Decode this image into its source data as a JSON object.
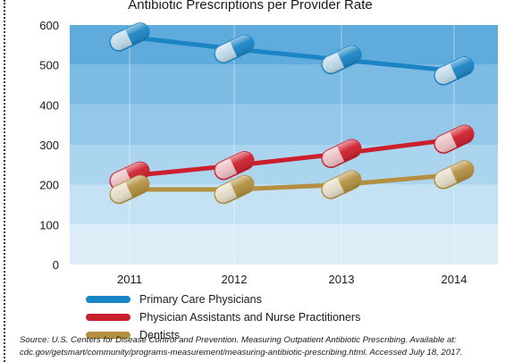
{
  "chart_data": {
    "type": "line",
    "title": "Antibiotic Prescriptions per Provider Rate",
    "xlabel": "",
    "ylabel": "",
    "categories": [
      "2011",
      "2012",
      "2013",
      "2014"
    ],
    "ylim": [
      0,
      600
    ],
    "yticks": [
      0,
      100,
      200,
      300,
      400,
      500,
      600
    ],
    "grid": false,
    "legend_position": "bottom-left",
    "marker_style": "capsule",
    "series": [
      {
        "name": "Primary Care Physicians",
        "color": "#1a84c4",
        "values": [
          570,
          540,
          513,
          485
        ]
      },
      {
        "name": "Physician Assistants and Nurse Practitioners",
        "color": "#cc1f2d",
        "values": [
          222,
          248,
          278,
          314
        ]
      },
      {
        "name": "Dentists",
        "color": "#b38f3f",
        "values": [
          188,
          188,
          200,
          225
        ]
      }
    ]
  },
  "source_note": {
    "line1": "Source: U.S. Centers for Disease Control and Prevention. Measuring Outpatient Antibiotic Prescribing. Available at:",
    "line2": "cdc.gov/getsmart/community/programs-measurement/measuring-antibiotic-prescribing.html. Accessed July 18, 2017."
  }
}
